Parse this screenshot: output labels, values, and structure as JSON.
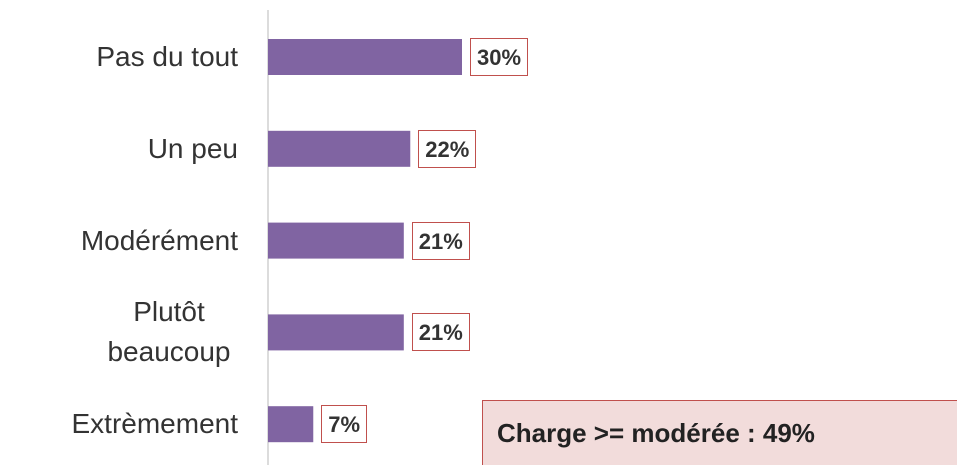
{
  "chart_data": {
    "type": "bar",
    "orientation": "horizontal",
    "categories": [
      "Pas du tout",
      "Un peu",
      "Modérément",
      "Plutôt beaucoup",
      "Extrèmement"
    ],
    "values": [
      30,
      22,
      21,
      21,
      7
    ],
    "value_labels": [
      "30%",
      "22%",
      "21%",
      "21%",
      "7%"
    ],
    "color": "#8064a2",
    "annotation": "Charge >= modérée : 49%"
  }
}
